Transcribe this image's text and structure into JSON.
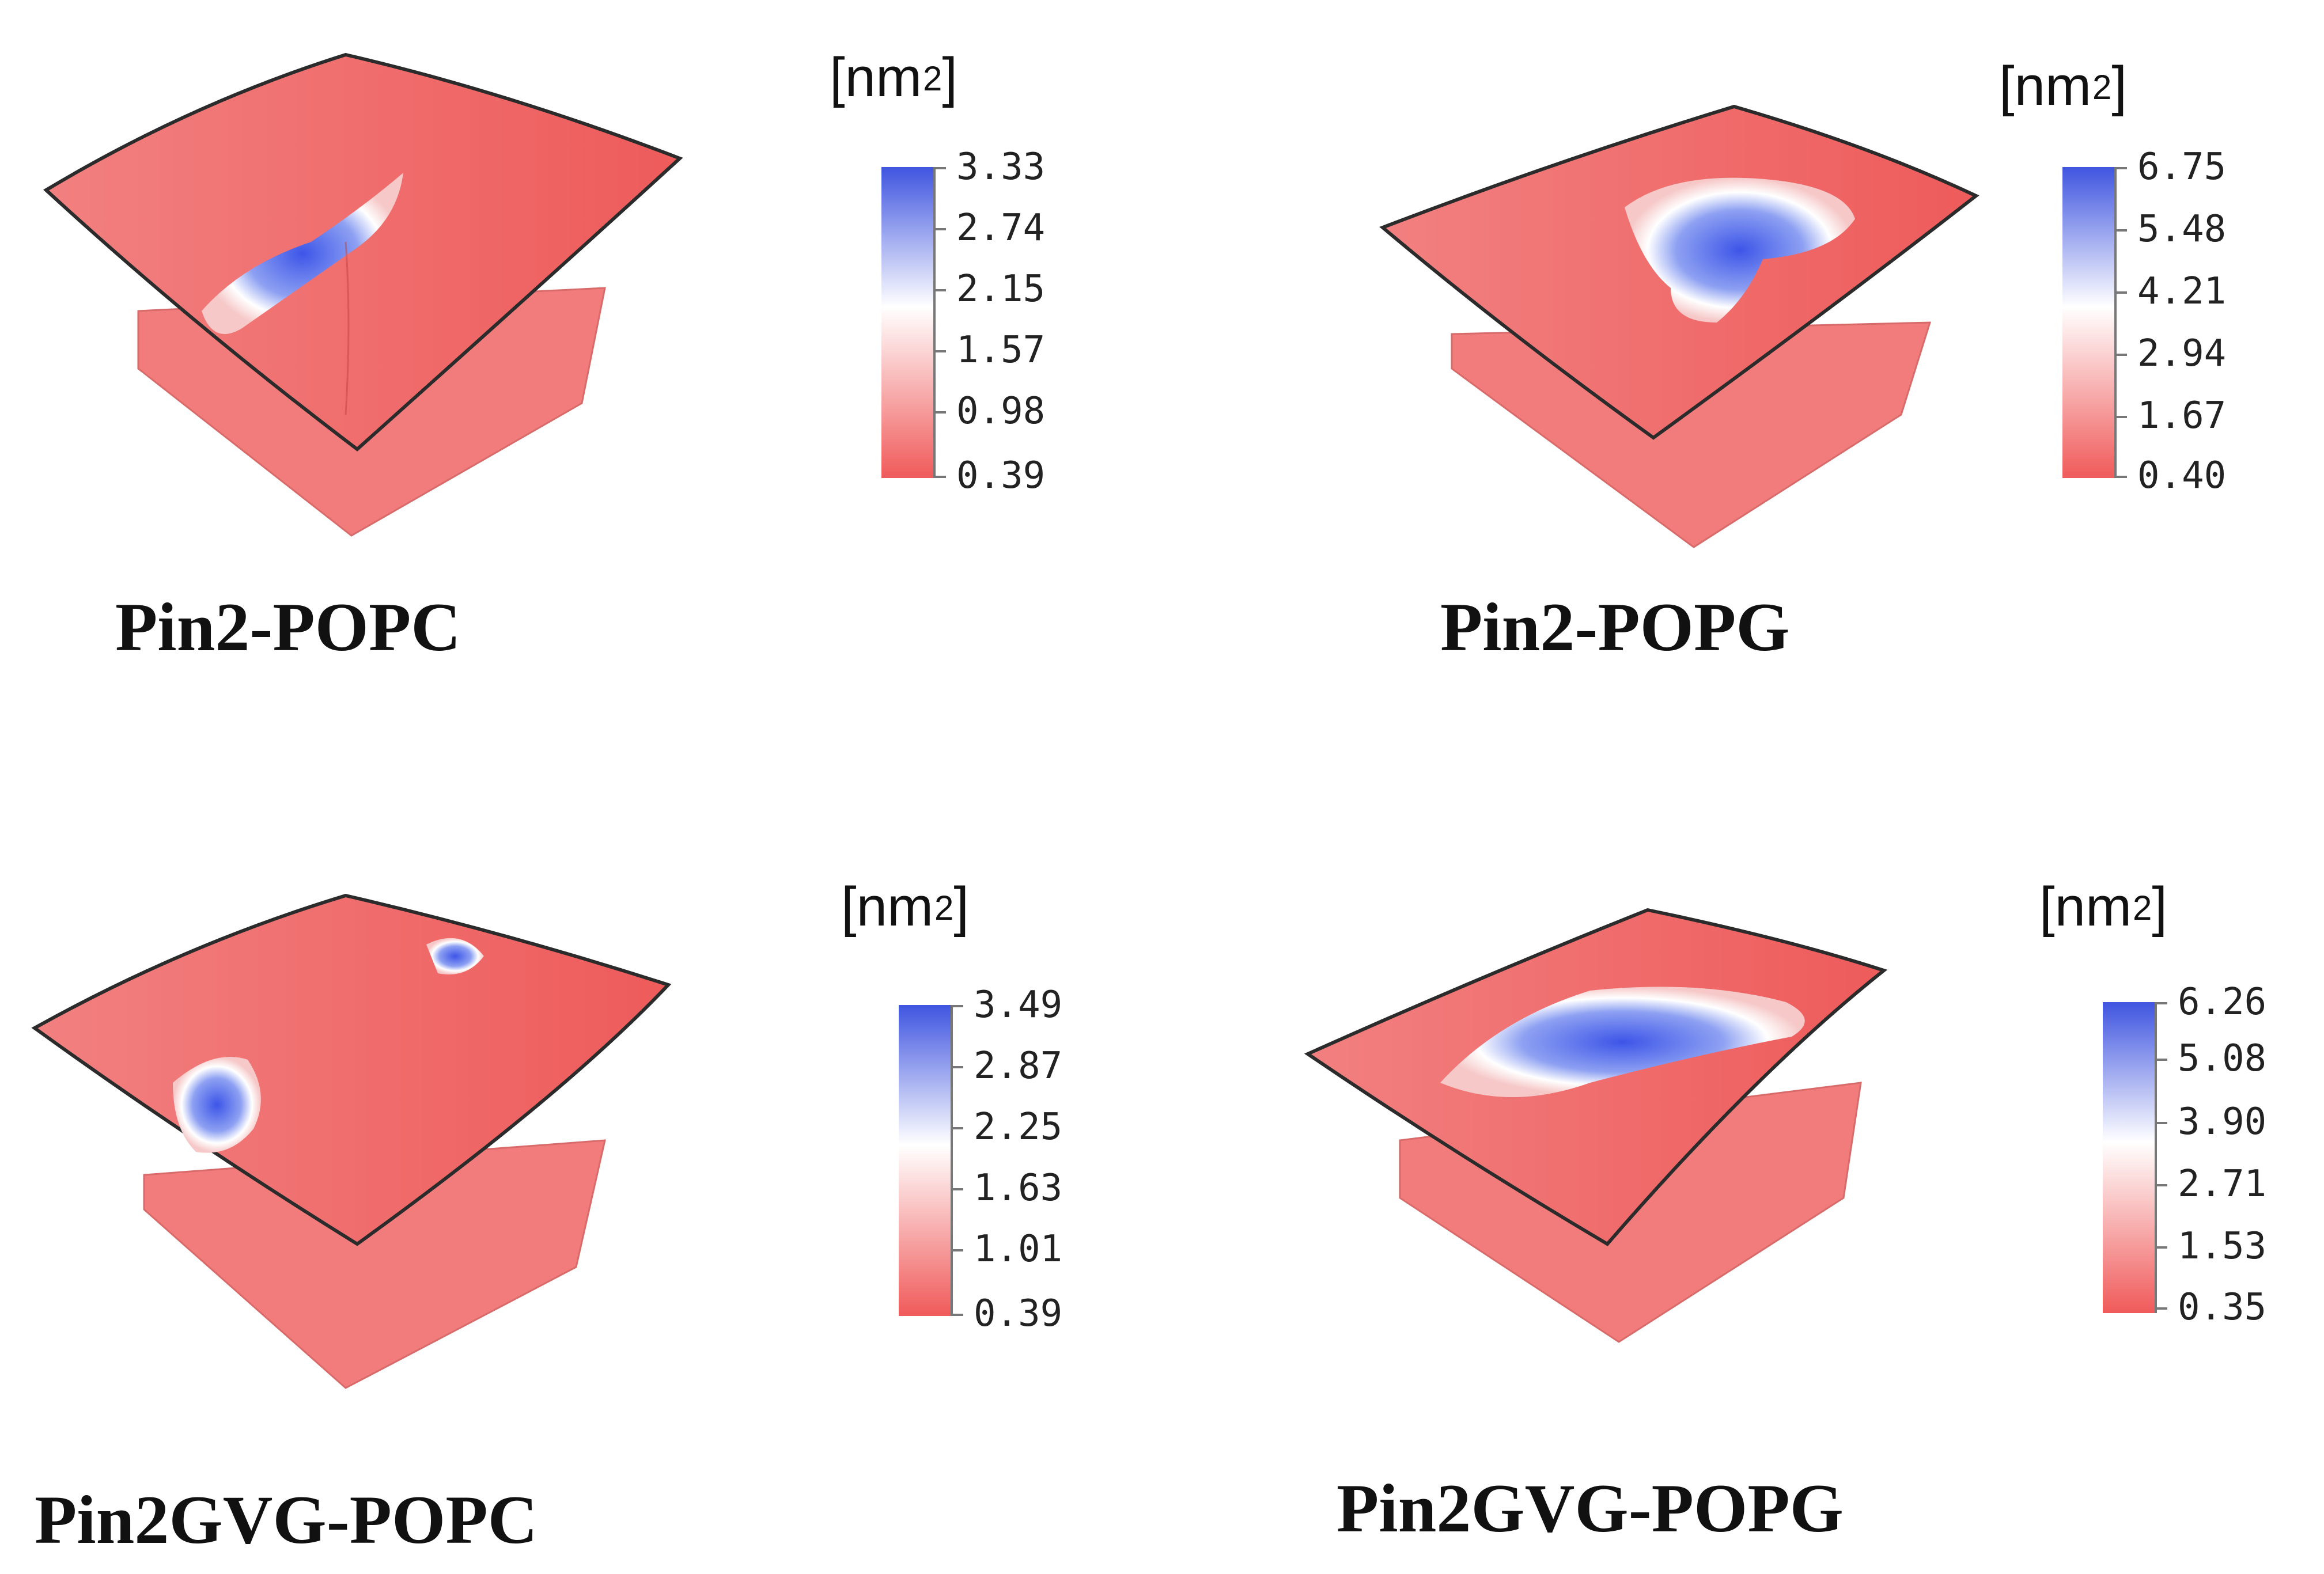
{
  "panels": [
    {
      "caption": "Pin2-POPC",
      "unit_label": "[nm",
      "unit_power": "2",
      "unit_close": "]",
      "ticks": [
        "3.33",
        "2.74",
        "2.15",
        "1.57",
        "0.98",
        "0.39"
      ]
    },
    {
      "caption": "Pin2-POPG",
      "unit_label": "[nm",
      "unit_power": "2",
      "unit_close": "]",
      "ticks": [
        "6.75",
        "5.48",
        "4.21",
        "2.94",
        "1.67",
        "0.40"
      ]
    },
    {
      "caption": "Pin2GVG-POPC",
      "unit_label": "[nm",
      "unit_power": "2",
      "unit_close": "]",
      "ticks": [
        "3.49",
        "2.87",
        "2.25",
        "1.63",
        "1.01",
        "0.39"
      ]
    },
    {
      "caption": "Pin2GVG-POPG",
      "unit_label": "[nm",
      "unit_power": "2",
      "unit_close": "]",
      "ticks": [
        "6.26",
        "5.08",
        "3.90",
        "2.71",
        "1.53",
        "0.35"
      ]
    }
  ],
  "colors": {
    "low": "#f05a5a",
    "mid": "#ffffff",
    "high": "#3f55e0",
    "edge": "#333333"
  }
}
